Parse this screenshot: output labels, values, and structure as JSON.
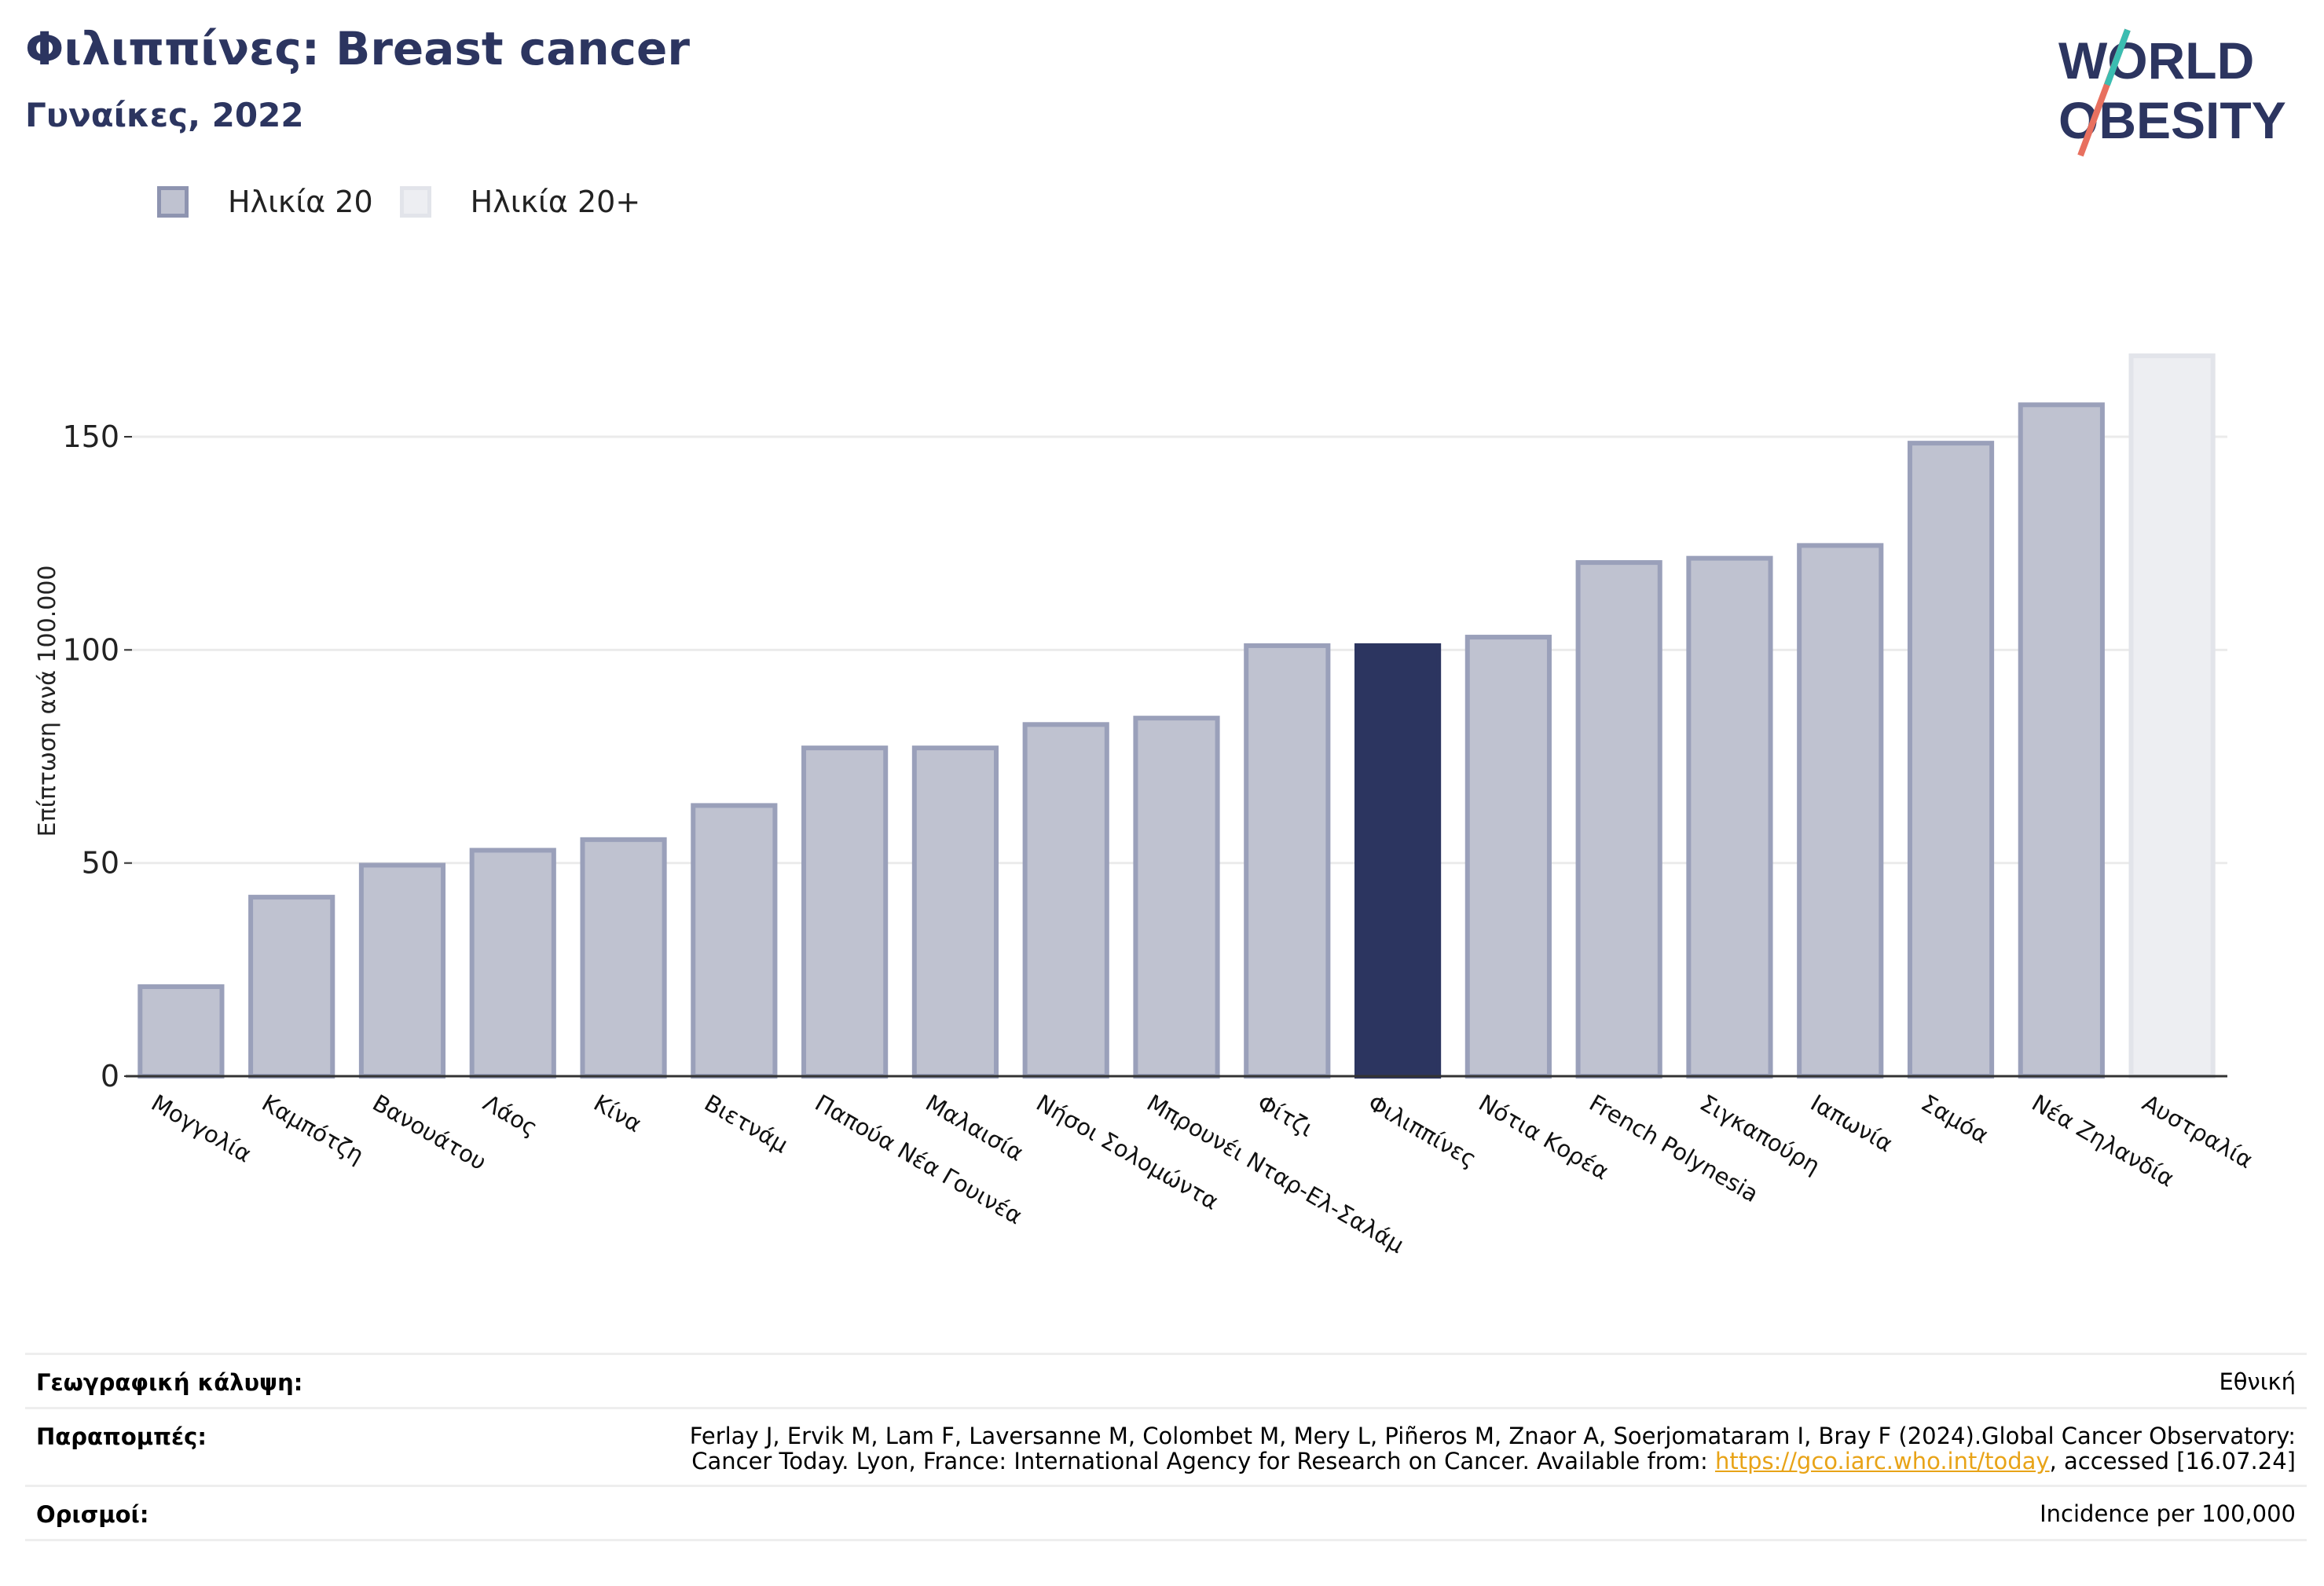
{
  "header": {
    "title": "Φιλιππίνες: Breast cancer",
    "subtitle": "Γυναίκες, 2022"
  },
  "logo": {
    "line1": "WORLD",
    "line2": "OBESITY"
  },
  "legend": [
    {
      "label": "Ηλικία 20",
      "color": "#bfc2d0",
      "border": "#8e94b0"
    },
    {
      "label": "Ηλικία 20+",
      "color": "#edeef2",
      "border": "#e2e4ea"
    }
  ],
  "chart_data": {
    "type": "bar",
    "ylabel": "Επίπτωση ανά 100.000",
    "ylim": [
      0,
      175
    ],
    "yticks": [
      0,
      50,
      100,
      150
    ],
    "grid": true,
    "categories": [
      "Μογγολία",
      "Καμπότζη",
      "Βανουάτου",
      "Λάος",
      "Κίνα",
      "Βιετνάμ",
      "Παπούα Νέα Γουινέα",
      "Μαλαισία",
      "Νήσοι Σολομώντα",
      "Μπρουνέι Νταρ-Ελ-Σαλάμ",
      "Φίτζι",
      "Φιλιππίνες",
      "Νότια Κορέα",
      "French Polynesia",
      "Σιγκαπούρη",
      "Ιαπωνία",
      "Σαμόα",
      "Νέα Ζηλανδία",
      "Αυστραλία"
    ],
    "values": [
      21,
      42,
      49.5,
      53,
      55.5,
      63.5,
      77,
      77,
      82.5,
      84,
      101,
      101,
      103,
      120.5,
      121.5,
      124.5,
      148.5,
      157.5,
      169
    ],
    "series_index": [
      0,
      0,
      0,
      0,
      0,
      0,
      0,
      0,
      0,
      0,
      0,
      0,
      0,
      0,
      0,
      0,
      0,
      0,
      1
    ],
    "highlight": "Φιλιππίνες",
    "colors": {
      "bar": "#bfc2d0",
      "bar_border": "#9aa0ba",
      "bar20plus": "#edeef2",
      "bar20plus_border": "#e2e4ea",
      "highlight": "#2c3560",
      "grid": "#ebebeb",
      "axis": "#333333"
    }
  },
  "footer": {
    "coverage_label": "Γεωγραφική κάλυψη:",
    "coverage_value": "Εθνική",
    "refs_label": "Παραπομπές:",
    "refs_line1": "Ferlay J, Ervik M, Lam F, Laversanne M, Colombet M, Mery L, Piñeros M, Znaor A, Soerjomataram I, Bray F (2024).Global Cancer Observatory:",
    "refs_line2_a": "Cancer Today. Lyon, France: International Agency for Research on Cancer. Available from: ",
    "refs_link": "https://gco.iarc.who.int/today",
    "refs_line2_b": ", accessed [16.07.24]",
    "defs_label": "Ορισμοί:",
    "defs_value": "Incidence per 100,000"
  }
}
